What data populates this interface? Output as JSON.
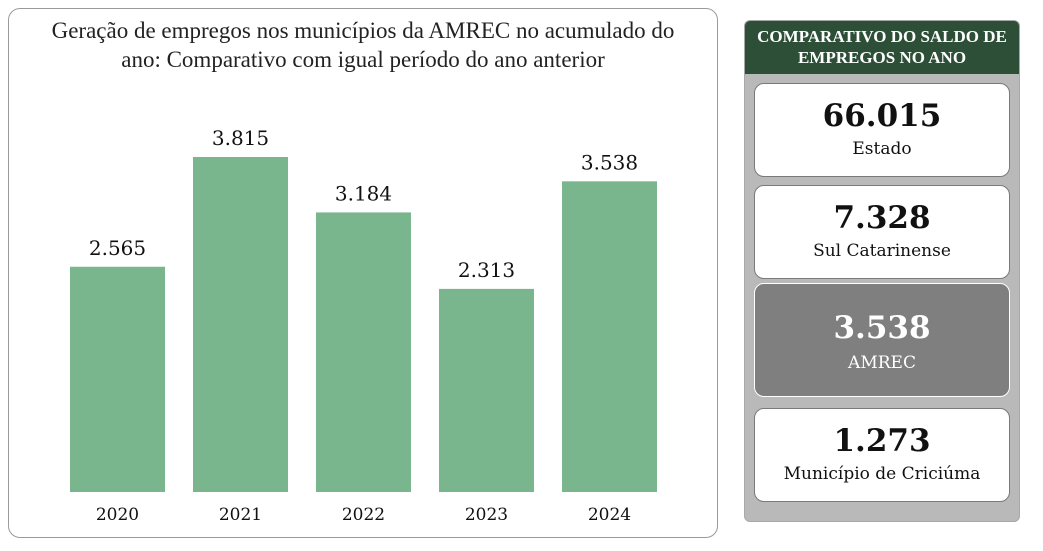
{
  "chart_data": {
    "type": "bar",
    "title": "Geração de empregos nos municípios da AMREC no acumulado do ano: Comparativo com igual período do ano anterior",
    "categories": [
      "2020",
      "2021",
      "2022",
      "2023",
      "2024"
    ],
    "values": [
      2565,
      3815,
      3184,
      2313,
      3538
    ],
    "value_labels": [
      "2.565",
      "3.815",
      "3.184",
      "2.313",
      "3.538"
    ],
    "ylim": [
      0,
      3815
    ],
    "grid": false,
    "bar_color": "#79b68d"
  },
  "side": {
    "header": "COMPARATIVO DO SALDO DE EMPREGOS NO ANO",
    "header_color": "#2d4f37",
    "cards": [
      {
        "value": "66.015",
        "label": "Estado",
        "highlight": false
      },
      {
        "value": "7.328",
        "label": "Sul Catarinense",
        "highlight": false
      },
      {
        "value": "3.538",
        "label": "AMREC",
        "highlight": true
      },
      {
        "value": "1.273",
        "label": "Município de Criciúma",
        "highlight": false
      }
    ]
  }
}
